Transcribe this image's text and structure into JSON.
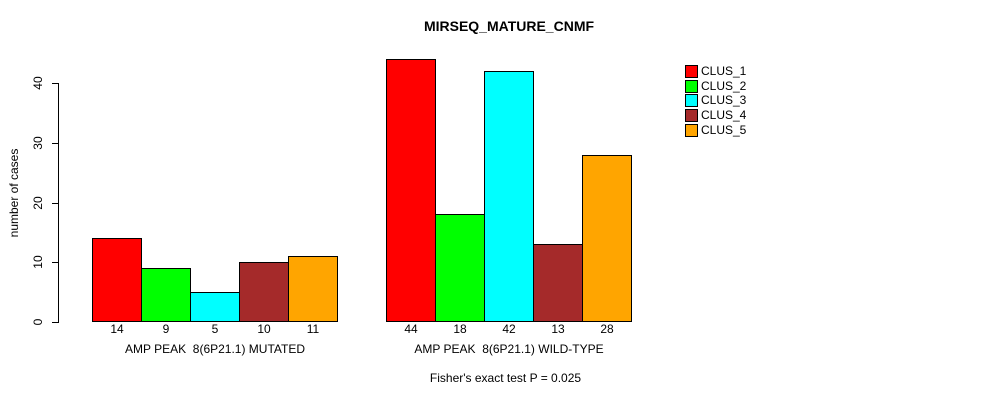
{
  "chart_data": {
    "type": "bar",
    "title": "MIRSEQ_MATURE_CNMF",
    "ylabel": "number of cases",
    "xlabel": "",
    "ylim": [
      0,
      44
    ],
    "yticks": [
      0,
      10,
      20,
      30,
      40
    ],
    "grid": false,
    "legend_position": "top-right-inside",
    "bar_value_labels": true,
    "categories": [
      "AMP PEAK  8(6P21.1) MUTATED",
      "AMP PEAK  8(6P21.1) WILD-TYPE"
    ],
    "series": [
      {
        "name": "CLUS_1",
        "color": "#FF0000",
        "values": [
          14,
          44
        ]
      },
      {
        "name": "CLUS_2",
        "color": "#00FF00",
        "values": [
          9,
          18
        ]
      },
      {
        "name": "CLUS_3",
        "color": "#00FFFF",
        "values": [
          5,
          42
        ]
      },
      {
        "name": "CLUS_4",
        "color": "#A52A2A",
        "values": [
          10,
          13
        ]
      },
      {
        "name": "CLUS_5",
        "color": "#FFA500",
        "values": [
          11,
          28
        ]
      }
    ],
    "annotation": "Fisher's exact test P = 0.025"
  },
  "colors": {
    "axis": "#000000",
    "text": "#000000",
    "background": "#FFFFFF"
  }
}
